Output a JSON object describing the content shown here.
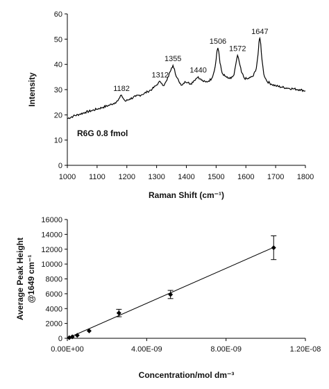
{
  "chart_data": [
    {
      "type": "line",
      "xlabel": "Raman Shift (cm⁻¹)",
      "ylabel": "Intensity",
      "xlim": [
        1000,
        1800
      ],
      "ylim": [
        0,
        60
      ],
      "xticks": [
        1000,
        1100,
        1200,
        1300,
        1400,
        1500,
        1600,
        1700,
        1800
      ],
      "yticks": [
        0,
        10,
        20,
        30,
        40,
        50,
        60
      ],
      "inset_text": "R6G 0.8 fmol",
      "grid": false,
      "spectrum": {
        "x": [
          1000,
          1020,
          1040,
          1060,
          1080,
          1100,
          1120,
          1140,
          1160,
          1170,
          1176,
          1182,
          1188,
          1195,
          1210,
          1230,
          1250,
          1270,
          1285,
          1298,
          1305,
          1312,
          1318,
          1325,
          1335,
          1345,
          1350,
          1355,
          1360,
          1366,
          1375,
          1385,
          1395,
          1405,
          1415,
          1425,
          1432,
          1440,
          1446,
          1455,
          1465,
          1475,
          1485,
          1494,
          1500,
          1503,
          1506,
          1509,
          1513,
          1520,
          1530,
          1540,
          1550,
          1560,
          1566,
          1572,
          1578,
          1585,
          1595,
          1605,
          1615,
          1625,
          1635,
          1641,
          1644,
          1647,
          1650,
          1654,
          1660,
          1670,
          1685,
          1700,
          1720,
          1740,
          1760,
          1780,
          1800
        ],
        "y": [
          18.5,
          19.5,
          20.2,
          21.0,
          21.6,
          22.3,
          23.0,
          23.8,
          24.8,
          25.6,
          26.8,
          27.8,
          26.5,
          25.4,
          26.3,
          27.3,
          28.0,
          29.2,
          30.2,
          31.6,
          32.5,
          33.2,
          32.4,
          31.6,
          33.8,
          37.0,
          38.6,
          39.6,
          38.2,
          35.2,
          33.2,
          31.8,
          33.2,
          32.8,
          32.3,
          33.5,
          34.3,
          35.1,
          34.2,
          33.4,
          33.0,
          33.4,
          34.4,
          37.5,
          42.0,
          45.4,
          46.5,
          45.0,
          40.6,
          36.6,
          35.3,
          34.5,
          34.4,
          35.8,
          40.0,
          43.6,
          40.8,
          37.0,
          34.5,
          34.2,
          34.8,
          35.4,
          38.5,
          44.0,
          48.8,
          50.4,
          48.0,
          42.0,
          36.2,
          33.4,
          32.2,
          31.5,
          31.0,
          30.6,
          30.3,
          30.0,
          29.5
        ]
      },
      "peak_labels": [
        {
          "x": 1182,
          "y": 27.8,
          "text": "1182"
        },
        {
          "x": 1312,
          "y": 33.2,
          "text": "1312"
        },
        {
          "x": 1355,
          "y": 39.6,
          "text": "1355"
        },
        {
          "x": 1440,
          "y": 35.1,
          "text": "1440"
        },
        {
          "x": 1506,
          "y": 46.5,
          "text": "1506"
        },
        {
          "x": 1572,
          "y": 43.6,
          "text": "1572"
        },
        {
          "x": 1647,
          "y": 50.4,
          "text": "1647"
        }
      ]
    },
    {
      "type": "scatter",
      "xlabel": "Concentration/mol dm⁻³",
      "ylabel_line1": "Average Peak Height",
      "ylabel_line2": "@1649 cm⁻¹",
      "xlim": [
        0,
        1.2e-08
      ],
      "ylim": [
        0,
        16000
      ],
      "xticks": [
        0,
        4e-09,
        8e-09,
        1.2e-08
      ],
      "xtick_labels": [
        "0.00E+00",
        "4.00E-09",
        "8.00E-09",
        "1.20E-08"
      ],
      "yticks": [
        0,
        2000,
        4000,
        6000,
        8000,
        10000,
        12000,
        14000,
        16000
      ],
      "grid": false,
      "points": [
        {
          "x": 1e-10,
          "y": 80,
          "err": 0
        },
        {
          "x": 2.5e-10,
          "y": 200,
          "err": 0
        },
        {
          "x": 5e-10,
          "y": 400,
          "err": 0
        },
        {
          "x": 1.1e-09,
          "y": 1000,
          "err": 0
        },
        {
          "x": 2.6e-09,
          "y": 3400,
          "err": 500
        },
        {
          "x": 5.2e-09,
          "y": 5900,
          "err": 550
        },
        {
          "x": 1.04e-08,
          "y": 12200,
          "err": 1600
        }
      ],
      "fit_line": {
        "x": [
          0,
          1.04e-08
        ],
        "y": [
          0,
          12250
        ]
      }
    }
  ]
}
